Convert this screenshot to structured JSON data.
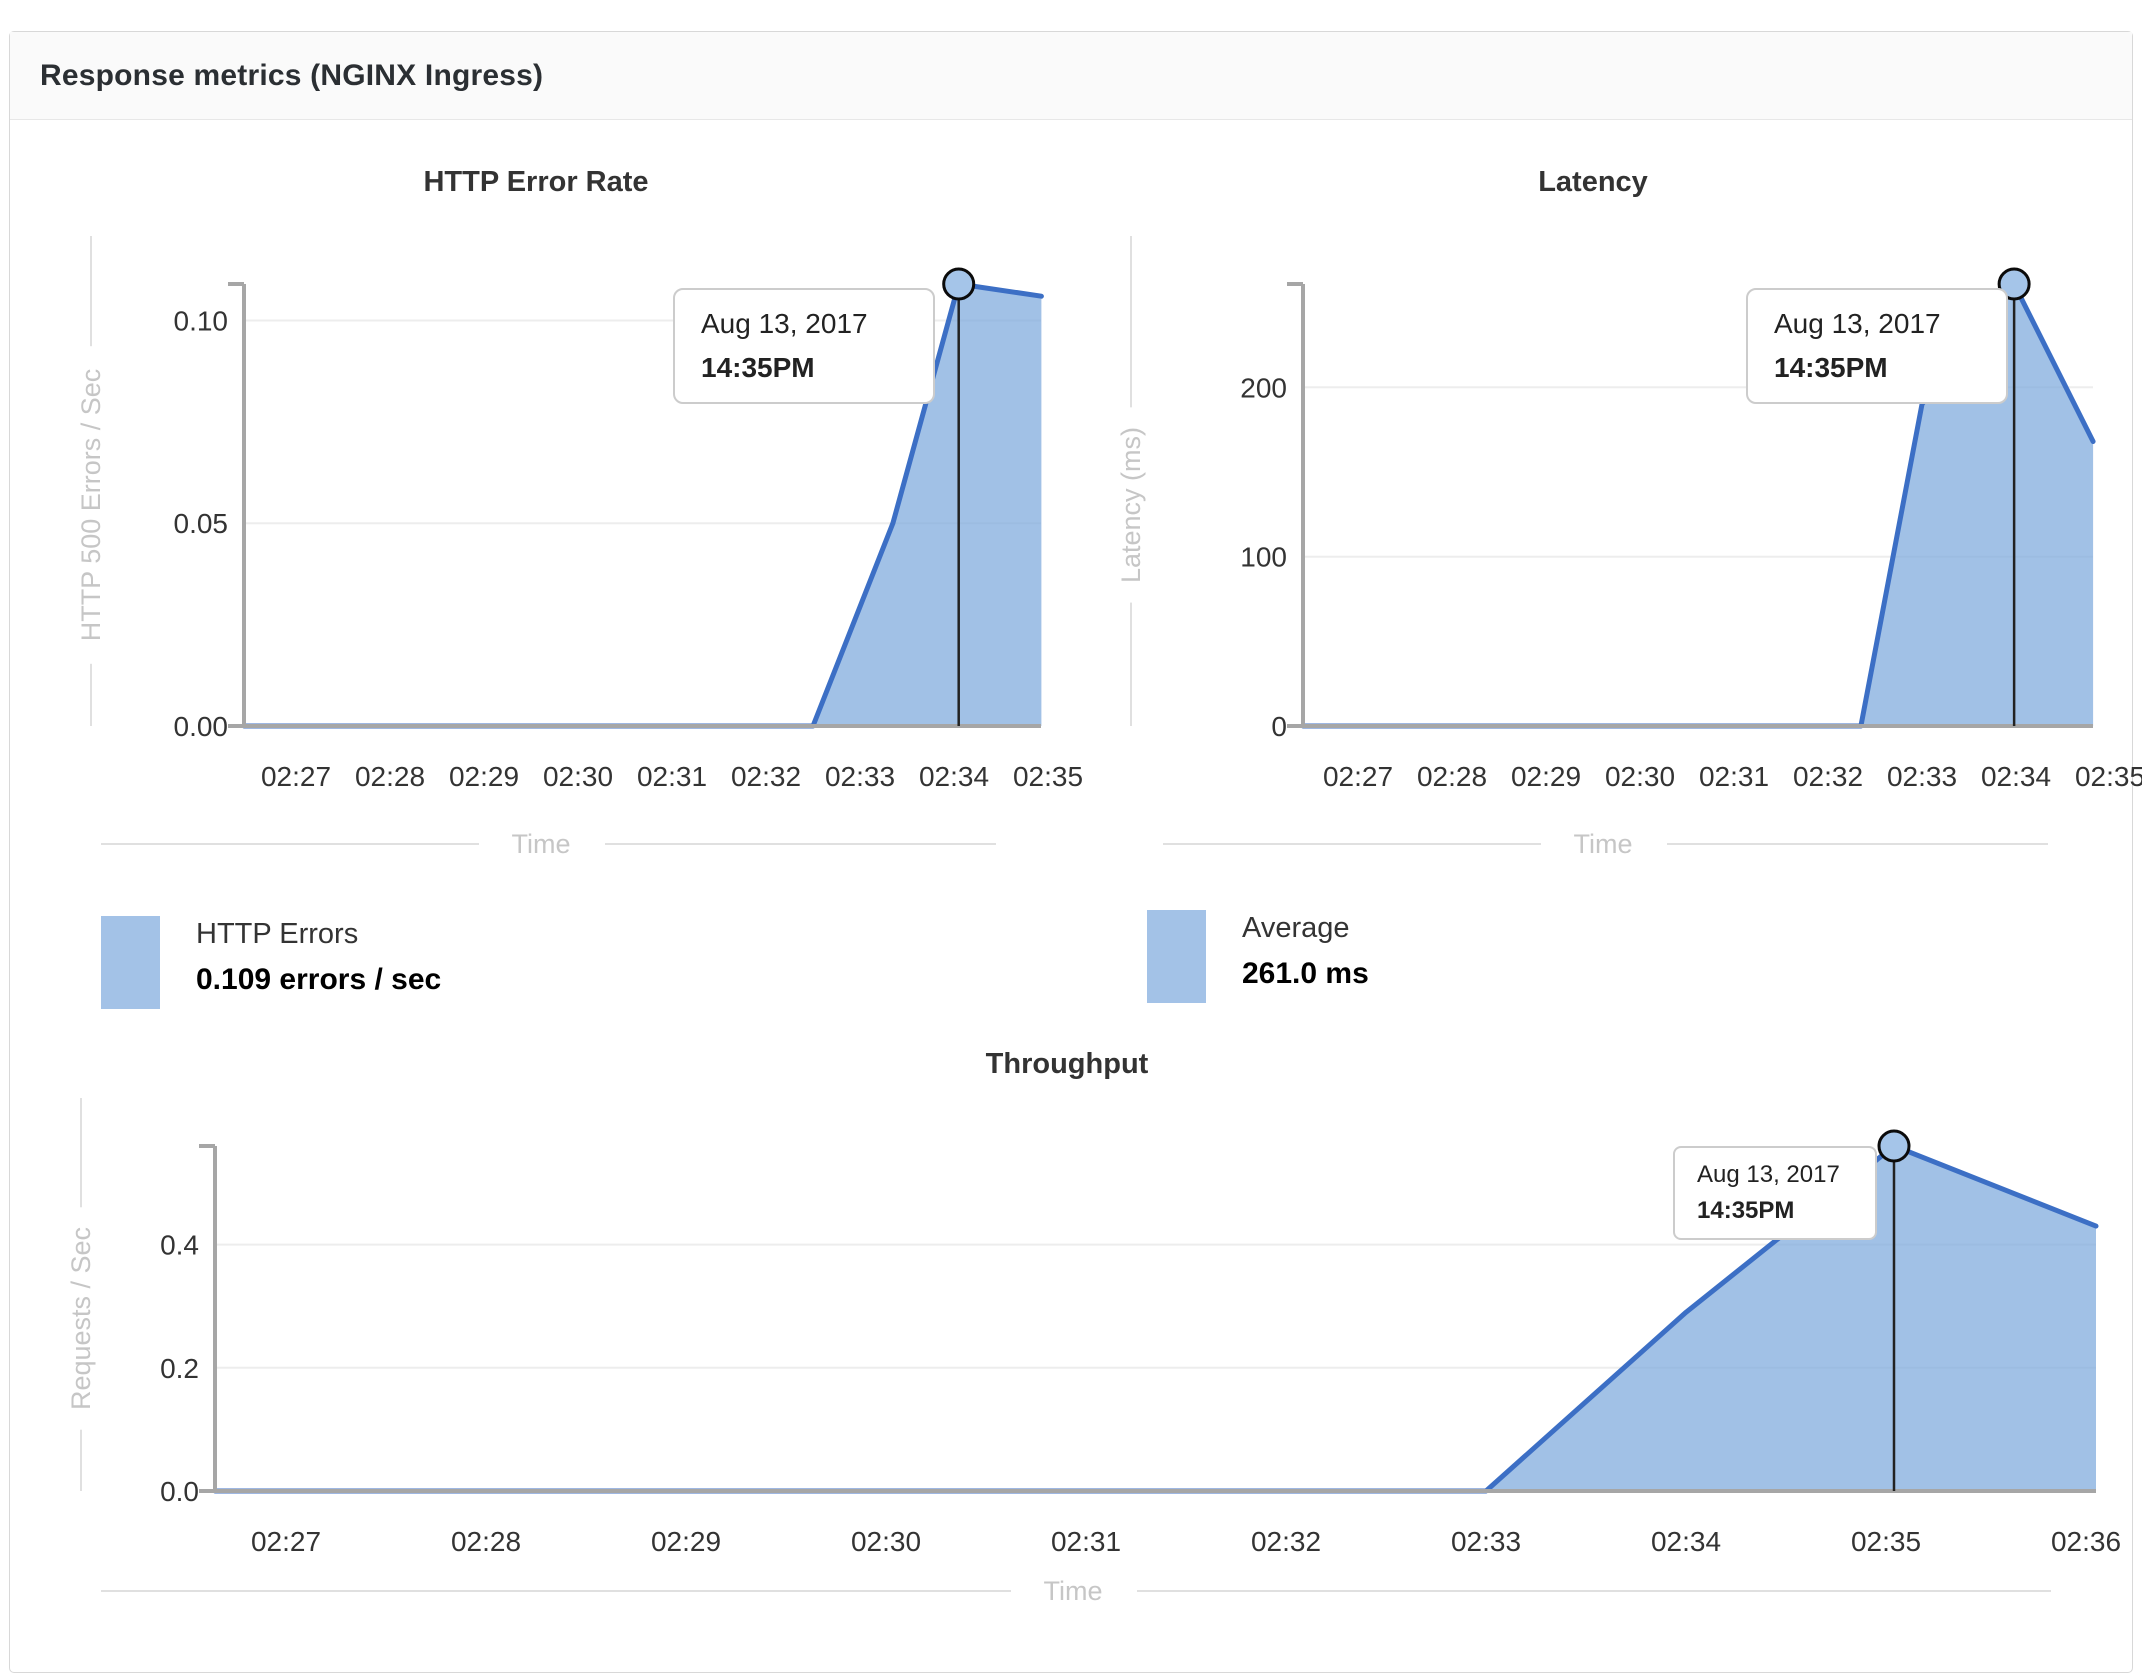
{
  "panel": {
    "title": "Response metrics (NGINX Ingress)"
  },
  "colors": {
    "line": "#3c6fc5",
    "fill": "rgba(125,169,220,0.72)",
    "swatch": "#a3c2e7",
    "marker_fill": "#a5c5e9",
    "marker_stroke": "#0b0b0b",
    "marker_line": "#222222",
    "grid": "#ededed",
    "axis": "#a6a6a6",
    "axis_title": "#c6c6c6",
    "guide": "#e0e0e0",
    "tick_label": "#333333"
  },
  "chart_data": [
    {
      "type": "area",
      "title": "HTTP Error Rate",
      "xlabel": "Time",
      "ylabel": "HTTP 500 Errors / Sec",
      "x_ticks": [
        "02:27",
        "02:28",
        "02:29",
        "02:30",
        "02:31",
        "02:32",
        "02:33",
        "02:34",
        "02:35"
      ],
      "y_ticks": [
        0.1,
        0.05,
        0
      ],
      "y_tick_labels": [
        "0.10",
        "0.05",
        "0.00"
      ],
      "ylim": [
        0,
        0.109
      ],
      "x_unit": "minutes after 02:27",
      "points": [
        [
          0,
          0
        ],
        [
          1,
          0
        ],
        [
          2,
          0
        ],
        [
          3,
          0
        ],
        [
          4,
          0
        ],
        [
          5,
          0
        ],
        [
          5.5,
          0
        ],
        [
          6.35,
          0.05
        ],
        [
          7.05,
          0.109
        ],
        [
          7.93,
          0.106
        ]
      ],
      "marker": {
        "x": 7.05,
        "value": 0.109
      },
      "tooltip": {
        "date": "Aug 13, 2017",
        "time": "14:35PM"
      },
      "legend": {
        "label": "HTTP Errors",
        "value": "0.109 errors / sec"
      },
      "grid": "horizontal",
      "legend_position": "bottom-left"
    },
    {
      "type": "area",
      "title": "Latency",
      "xlabel": "Time",
      "ylabel": "Latency (ms)",
      "x_ticks": [
        "02:27",
        "02:28",
        "02:29",
        "02:30",
        "02:31",
        "02:32",
        "02:33",
        "02:34",
        "02:35"
      ],
      "y_ticks": [
        200,
        100,
        0
      ],
      "y_tick_labels": [
        "200",
        "100",
        "0"
      ],
      "ylim": [
        0,
        261
      ],
      "x_unit": "minutes after 02:27",
      "points": [
        [
          0,
          0
        ],
        [
          1,
          0
        ],
        [
          2,
          0
        ],
        [
          3,
          0
        ],
        [
          4,
          0
        ],
        [
          5,
          0
        ],
        [
          5.35,
          0
        ],
        [
          6.0,
          190
        ],
        [
          6.98,
          261
        ],
        [
          7.82,
          168
        ]
      ],
      "marker": {
        "x": 6.98,
        "value": 261
      },
      "tooltip": {
        "date": "Aug 13, 2017",
        "time": "14:35PM"
      },
      "legend": {
        "label": "Average",
        "value": "261.0 ms"
      },
      "grid": "horizontal",
      "legend_position": "bottom-left"
    },
    {
      "type": "area",
      "title": "Throughput",
      "xlabel": "Time",
      "ylabel": "Requests / Sec",
      "x_ticks": [
        "02:27",
        "02:28",
        "02:29",
        "02:30",
        "02:31",
        "02:32",
        "02:33",
        "02:34",
        "02:35",
        "02:36"
      ],
      "y_ticks": [
        0.4,
        0.2,
        0
      ],
      "y_tick_labels": [
        "0.4",
        "0.2",
        "0.0"
      ],
      "ylim": [
        0,
        0.56
      ],
      "x_unit": "minutes after 02:27",
      "points": [
        [
          0,
          0
        ],
        [
          1,
          0
        ],
        [
          2,
          0
        ],
        [
          3,
          0
        ],
        [
          4,
          0
        ],
        [
          5,
          0
        ],
        [
          6,
          0
        ],
        [
          7,
          0.29
        ],
        [
          8.04,
          0.56
        ],
        [
          9.05,
          0.43
        ]
      ],
      "marker": {
        "x": 8.04,
        "value": 0.56
      },
      "tooltip": {
        "date": "Aug 13, 2017",
        "time": "14:35PM"
      },
      "grid": "horizontal"
    }
  ]
}
